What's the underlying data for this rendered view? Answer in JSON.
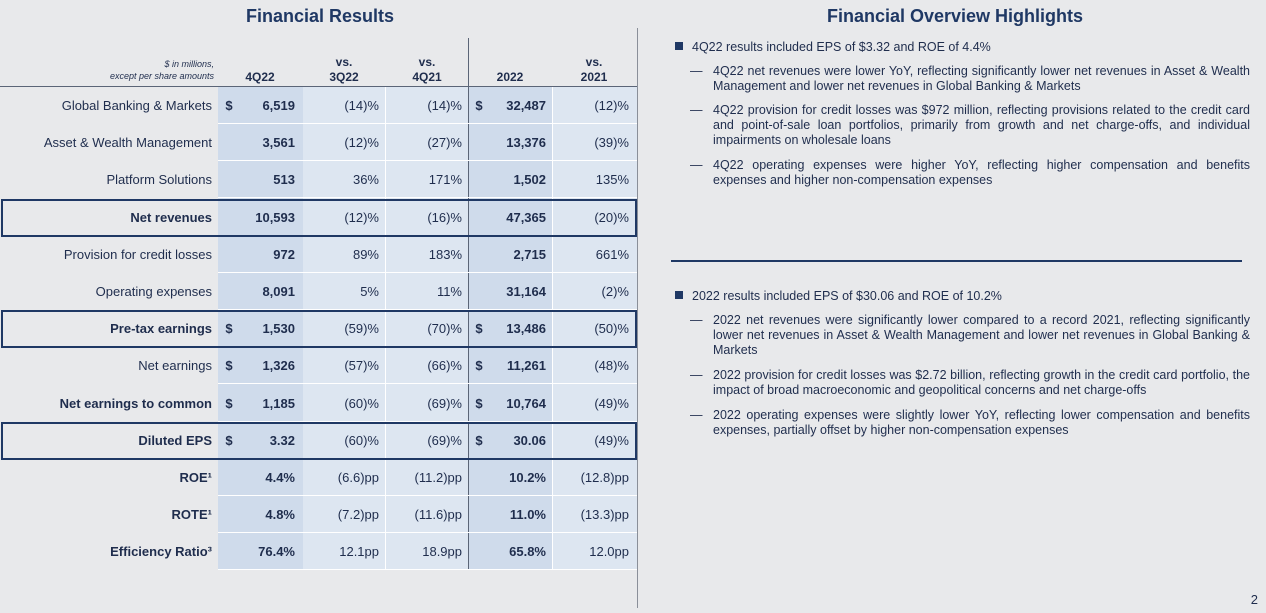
{
  "left_title": "Financial Results",
  "right_title": "Financial Overview Highlights",
  "table": {
    "note_line1": "$ in millions,",
    "note_line2": "except per share amounts",
    "headers": [
      {
        "l1": "",
        "l2": "4Q22"
      },
      {
        "l1": "vs.",
        "l2": "3Q22"
      },
      {
        "l1": "vs.",
        "l2": "4Q21"
      },
      {
        "l1": "",
        "l2": "2022"
      },
      {
        "l1": "vs.",
        "l2": "2021"
      }
    ],
    "rows": [
      {
        "label": "Global Banking & Markets",
        "d1": "$",
        "v1": "6,519",
        "v2": "(14)%",
        "v3": "(14)%",
        "d4": "$",
        "v4": "32,487",
        "v5": "(12)%",
        "bold": false,
        "boxed": false
      },
      {
        "label": "Asset & Wealth Management",
        "d1": "",
        "v1": "3,561",
        "v2": "(12)%",
        "v3": "(27)%",
        "d4": "",
        "v4": "13,376",
        "v5": "(39)%",
        "bold": false,
        "boxed": false
      },
      {
        "label": "Platform Solutions",
        "d1": "",
        "v1": "513",
        "v2": "36%",
        "v3": "171%",
        "d4": "",
        "v4": "1,502",
        "v5": "135%",
        "bold": false,
        "boxed": false
      },
      {
        "label": "Net revenues",
        "d1": "",
        "v1": "10,593",
        "v2": "(12)%",
        "v3": "(16)%",
        "d4": "",
        "v4": "47,365",
        "v5": "(20)%",
        "bold": true,
        "boxed": true
      },
      {
        "label": "Provision for credit losses",
        "d1": "",
        "v1": "972",
        "v2": "89%",
        "v3": "183%",
        "d4": "",
        "v4": "2,715",
        "v5": "661%",
        "bold": false,
        "boxed": false
      },
      {
        "label": "Operating expenses",
        "d1": "",
        "v1": "8,091",
        "v2": "5%",
        "v3": "11%",
        "d4": "",
        "v4": "31,164",
        "v5": "(2)%",
        "bold": false,
        "boxed": false
      },
      {
        "label": "Pre-tax earnings",
        "d1": "$",
        "v1": "1,530",
        "v2": "(59)%",
        "v3": "(70)%",
        "d4": "$",
        "v4": "13,486",
        "v5": "(50)%",
        "bold": true,
        "boxed": true
      },
      {
        "label": "Net earnings",
        "d1": "$",
        "v1": "1,326",
        "v2": "(57)%",
        "v3": "(66)%",
        "d4": "$",
        "v4": "11,261",
        "v5": "(48)%",
        "bold": false,
        "boxed": false
      },
      {
        "label": "Net earnings to common",
        "d1": "$",
        "v1": "1,185",
        "v2": "(60)%",
        "v3": "(69)%",
        "d4": "$",
        "v4": "10,764",
        "v5": "(49)%",
        "bold": true,
        "boxed": false
      },
      {
        "label": "Diluted EPS",
        "d1": "$",
        "v1": "3.32",
        "v2": "(60)%",
        "v3": "(69)%",
        "d4": "$",
        "v4": "30.06",
        "v5": "(49)%",
        "bold": true,
        "boxed": true
      },
      {
        "label": "ROE¹",
        "d1": "",
        "v1": "4.4%",
        "v2": "(6.6)pp",
        "v3": "(11.2)pp",
        "d4": "",
        "v4": "10.2%",
        "v5": "(12.8)pp",
        "bold": true,
        "boxed": false
      },
      {
        "label": "ROTE¹",
        "d1": "",
        "v1": "4.8%",
        "v2": "(7.2)pp",
        "v3": "(11.6)pp",
        "d4": "",
        "v4": "11.0%",
        "v5": "(13.3)pp",
        "bold": true,
        "boxed": false
      },
      {
        "label": "Efficiency Ratio³",
        "d1": "",
        "v1": "76.4%",
        "v2": "12.1pp",
        "v3": "18.9pp",
        "d4": "",
        "v4": "65.8%",
        "v5": "12.0pp",
        "bold": true,
        "boxed": false
      }
    ]
  },
  "highlights": [
    {
      "main": "4Q22 results included EPS of $3.32 and ROE of 4.4%",
      "subs": [
        "4Q22 net revenues were lower YoY, reflecting significantly lower net revenues in Asset & Wealth Management and lower net revenues in Global Banking & Markets",
        "4Q22 provision for credit losses was $972 million, reflecting provisions related to the credit card and point-of-sale loan portfolios, primarily from growth and net charge-offs, and individual impairments on wholesale loans",
        "4Q22 operating expenses were higher YoY, reflecting higher compensation and benefits expenses and higher non-compensation expenses"
      ]
    },
    {
      "main": "2022 results included EPS of $30.06 and ROE of 10.2%",
      "subs": [
        "2022 net revenues were significantly lower compared to a record 2021, reflecting significantly lower net revenues in Asset & Wealth Management and lower net revenues in Global Banking & Markets",
        "2022 provision for credit losses was $2.72 billion, reflecting growth in the credit card portfolio, the impact of broad macroeconomic and geopolitical concerns and net charge-offs",
        "2022 operating expenses were slightly lower YoY, reflecting lower compensation and benefits expenses, partially offset by higher non-compensation expenses"
      ]
    }
  ],
  "dash": "—",
  "page_number": "2"
}
